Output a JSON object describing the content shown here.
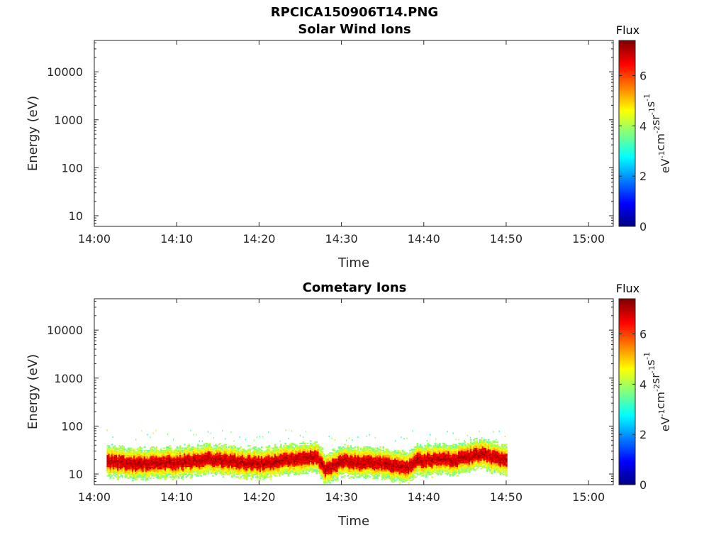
{
  "figure_title": "RPCICA150906T14.PNG",
  "chart_data": [
    {
      "type": "heatmap",
      "title": "Solar Wind Ions",
      "xlabel": "Time",
      "ylabel": "Energy (eV)",
      "y_scale": "log",
      "xlim": [
        "14:00",
        "15:03"
      ],
      "ylim": [
        6,
        45000
      ],
      "x_ticks": [
        "14:00",
        "14:10",
        "14:20",
        "14:30",
        "14:40",
        "14:50",
        "15:00"
      ],
      "y_ticks": [
        10,
        100,
        1000,
        10000
      ],
      "y_tick_labels": [
        "10",
        "100",
        "1000",
        "10000"
      ],
      "grid": false,
      "colorbar": {
        "label": "Flux",
        "units_base": [
          "eV",
          "cm",
          "sr",
          "s"
        ],
        "units_exp": [
          "-1",
          "-2",
          "-1",
          "-1"
        ],
        "range": [
          0,
          7.4
        ],
        "ticks": [
          0,
          2,
          4,
          6
        ],
        "tick_labels": [
          "0",
          "2",
          "4",
          "6"
        ],
        "colormap": "jet"
      },
      "data": {
        "note": "",
        "has_signal": false
      }
    },
    {
      "type": "heatmap",
      "title": "Cometary Ions",
      "xlabel": "Time",
      "ylabel": "Energy (eV)",
      "y_scale": "log",
      "xlim": [
        "14:00",
        "15:03"
      ],
      "ylim": [
        6,
        45000
      ],
      "x_ticks": [
        "14:00",
        "14:10",
        "14:20",
        "14:30",
        "14:40",
        "14:50",
        "15:00"
      ],
      "y_ticks": [
        10,
        100,
        1000,
        10000
      ],
      "y_tick_labels": [
        "10",
        "100",
        "1000",
        "10000"
      ],
      "grid": false,
      "colorbar": {
        "label": "Flux",
        "units_base": [
          "eV",
          "cm",
          "sr",
          "s"
        ],
        "units_exp": [
          "-1",
          "-2",
          "-1",
          "-1"
        ],
        "range": [
          0,
          7.4
        ],
        "ticks": [
          0,
          2,
          4,
          6
        ],
        "tick_labels": [
          "0",
          "2",
          "4",
          "6"
        ],
        "colormap": "jet"
      },
      "data": {
        "has_signal": true,
        "time_range": [
          "14:01.5",
          "14:50"
        ],
        "band_center_eV": [
          [
            "14:01.5",
            18
          ],
          [
            "14:05",
            16
          ],
          [
            "14:10",
            17
          ],
          [
            "14:14",
            20
          ],
          [
            "14:20",
            16
          ],
          [
            "14:24",
            20
          ],
          [
            "14:27",
            22
          ],
          [
            "14:28",
            12
          ],
          [
            "14:30",
            18
          ],
          [
            "14:34",
            17
          ],
          [
            "14:38",
            13
          ],
          [
            "14:39",
            19
          ],
          [
            "14:44",
            20
          ],
          [
            "14:47",
            26
          ],
          [
            "14:50",
            18
          ]
        ],
        "band_peak_flux": 7,
        "band_halo_flux": 4,
        "sparse_scatter_eV": [
          50,
          85
        ],
        "sparse_scatter_flux": 3
      }
    }
  ]
}
